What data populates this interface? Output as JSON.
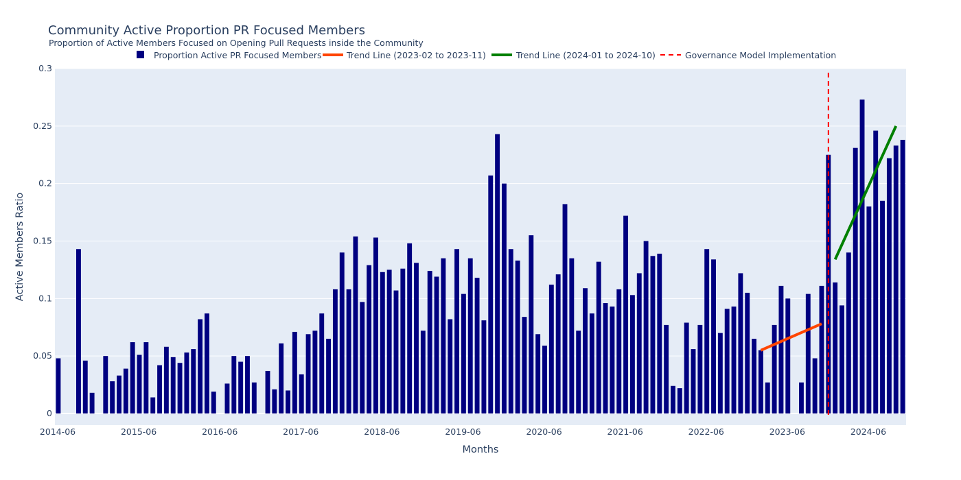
{
  "chart_data": {
    "type": "bar",
    "title": "Community Active Proportion PR Focused Members",
    "subtitle": "Proportion of Active Members Focused on Opening Pull Requests inside the Community",
    "xlabel": "Months",
    "ylabel": "Active Members Ratio",
    "ylim": [
      0,
      0.3
    ],
    "yticks": [
      0,
      0.05,
      0.1,
      0.15,
      0.2,
      0.25,
      0.3
    ],
    "ytick_labels": [
      "0",
      "0.05",
      "0.1",
      "0.15",
      "0.2",
      "0.25",
      "0.3"
    ],
    "xtick_labels": [
      "2014-06",
      "2015-06",
      "2016-06",
      "2017-06",
      "2018-06",
      "2019-06",
      "2020-06",
      "2021-06",
      "2022-06",
      "2023-06",
      "2024-06"
    ],
    "grid": true,
    "legend_position": "top",
    "start_month": "2014-06",
    "colors": {
      "bars": "#000080",
      "trend1": "#ff4500",
      "trend2": "#008000",
      "vline": "#ff0000",
      "plot_bg": "#e5ecf6"
    },
    "series": [
      {
        "name": "Proportion Active PR Focused Members",
        "kind": "bar",
        "values": [
          0.048,
          0,
          0,
          0.143,
          0.046,
          0.018,
          0,
          0.05,
          0.028,
          0.033,
          0.039,
          0.062,
          0.051,
          0.062,
          0.014,
          0.042,
          0.058,
          0.049,
          0.044,
          0.053,
          0.056,
          0.082,
          0.087,
          0.019,
          0,
          0.026,
          0.05,
          0.045,
          0.05,
          0.027,
          0,
          0.037,
          0.021,
          0.061,
          0.02,
          0.071,
          0.034,
          0.069,
          0.072,
          0.087,
          0.065,
          0.108,
          0.14,
          0.108,
          0.154,
          0.097,
          0.129,
          0.153,
          0.123,
          0.125,
          0.107,
          0.126,
          0.148,
          0.131,
          0.072,
          0.124,
          0.119,
          0.135,
          0.082,
          0.143,
          0.104,
          0.135,
          0.118,
          0.081,
          0.207,
          0.243,
          0.2,
          0.143,
          0.133,
          0.084,
          0.155,
          0.069,
          0.059,
          0.112,
          0.121,
          0.182,
          0.135,
          0.072,
          0.109,
          0.087,
          0.132,
          0.096,
          0.093,
          0.108,
          0.172,
          0.103,
          0.122,
          0.15,
          0.137,
          0.139,
          0.077,
          0.024,
          0.022,
          0.079,
          0.056,
          0.077,
          0.143,
          0.134,
          0.07,
          0.091,
          0.093,
          0.122,
          0.105,
          0.065,
          0.055,
          0.027,
          0.077,
          0.111,
          0.1,
          0,
          0.027,
          0.104,
          0.048,
          0.111,
          0.225,
          0.114,
          0.094,
          0.14,
          0.231,
          0.273,
          0.18,
          0.246,
          0.185,
          0.222,
          0.233,
          0.238
        ]
      },
      {
        "name": "Trend Line (2023-02 to 2023-11)",
        "kind": "line",
        "x": [
          "2023-02",
          "2023-11"
        ],
        "values": [
          0.055,
          0.078
        ]
      },
      {
        "name": "Trend Line (2024-01 to 2024-10)",
        "kind": "line",
        "x": [
          "2024-01",
          "2024-10"
        ],
        "values": [
          0.134,
          0.25
        ]
      },
      {
        "name": "Governance Model Implementation",
        "kind": "vline",
        "x": "2023-12"
      }
    ]
  }
}
